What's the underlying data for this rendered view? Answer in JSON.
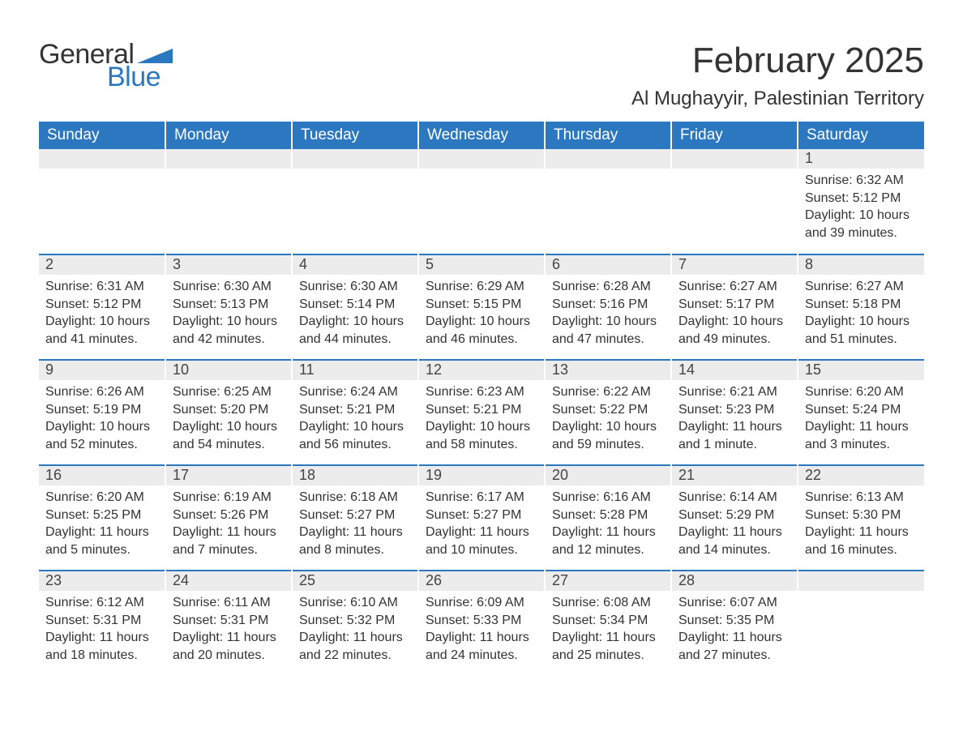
{
  "logo": {
    "general": "General",
    "blue": "Blue",
    "flag_color": "#2b77c0"
  },
  "title": "February 2025",
  "location": "Al Mughayyir, Palestinian Territory",
  "weekdays": [
    "Sunday",
    "Monday",
    "Tuesday",
    "Wednesday",
    "Thursday",
    "Friday",
    "Saturday"
  ],
  "colors": {
    "header_bg": "#2b77c0",
    "header_text": "#ffffff",
    "daynum_bg": "#ececec",
    "border_top": "#2b77c0",
    "text": "#333333",
    "background": "#ffffff"
  },
  "weeks": [
    [
      null,
      null,
      null,
      null,
      null,
      null,
      {
        "n": "1",
        "sunrise": "Sunrise: 6:32 AM",
        "sunset": "Sunset: 5:12 PM",
        "daylight": "Daylight: 10 hours and 39 minutes."
      }
    ],
    [
      {
        "n": "2",
        "sunrise": "Sunrise: 6:31 AM",
        "sunset": "Sunset: 5:12 PM",
        "daylight": "Daylight: 10 hours and 41 minutes."
      },
      {
        "n": "3",
        "sunrise": "Sunrise: 6:30 AM",
        "sunset": "Sunset: 5:13 PM",
        "daylight": "Daylight: 10 hours and 42 minutes."
      },
      {
        "n": "4",
        "sunrise": "Sunrise: 6:30 AM",
        "sunset": "Sunset: 5:14 PM",
        "daylight": "Daylight: 10 hours and 44 minutes."
      },
      {
        "n": "5",
        "sunrise": "Sunrise: 6:29 AM",
        "sunset": "Sunset: 5:15 PM",
        "daylight": "Daylight: 10 hours and 46 minutes."
      },
      {
        "n": "6",
        "sunrise": "Sunrise: 6:28 AM",
        "sunset": "Sunset: 5:16 PM",
        "daylight": "Daylight: 10 hours and 47 minutes."
      },
      {
        "n": "7",
        "sunrise": "Sunrise: 6:27 AM",
        "sunset": "Sunset: 5:17 PM",
        "daylight": "Daylight: 10 hours and 49 minutes."
      },
      {
        "n": "8",
        "sunrise": "Sunrise: 6:27 AM",
        "sunset": "Sunset: 5:18 PM",
        "daylight": "Daylight: 10 hours and 51 minutes."
      }
    ],
    [
      {
        "n": "9",
        "sunrise": "Sunrise: 6:26 AM",
        "sunset": "Sunset: 5:19 PM",
        "daylight": "Daylight: 10 hours and 52 minutes."
      },
      {
        "n": "10",
        "sunrise": "Sunrise: 6:25 AM",
        "sunset": "Sunset: 5:20 PM",
        "daylight": "Daylight: 10 hours and 54 minutes."
      },
      {
        "n": "11",
        "sunrise": "Sunrise: 6:24 AM",
        "sunset": "Sunset: 5:21 PM",
        "daylight": "Daylight: 10 hours and 56 minutes."
      },
      {
        "n": "12",
        "sunrise": "Sunrise: 6:23 AM",
        "sunset": "Sunset: 5:21 PM",
        "daylight": "Daylight: 10 hours and 58 minutes."
      },
      {
        "n": "13",
        "sunrise": "Sunrise: 6:22 AM",
        "sunset": "Sunset: 5:22 PM",
        "daylight": "Daylight: 10 hours and 59 minutes."
      },
      {
        "n": "14",
        "sunrise": "Sunrise: 6:21 AM",
        "sunset": "Sunset: 5:23 PM",
        "daylight": "Daylight: 11 hours and 1 minute."
      },
      {
        "n": "15",
        "sunrise": "Sunrise: 6:20 AM",
        "sunset": "Sunset: 5:24 PM",
        "daylight": "Daylight: 11 hours and 3 minutes."
      }
    ],
    [
      {
        "n": "16",
        "sunrise": "Sunrise: 6:20 AM",
        "sunset": "Sunset: 5:25 PM",
        "daylight": "Daylight: 11 hours and 5 minutes."
      },
      {
        "n": "17",
        "sunrise": "Sunrise: 6:19 AM",
        "sunset": "Sunset: 5:26 PM",
        "daylight": "Daylight: 11 hours and 7 minutes."
      },
      {
        "n": "18",
        "sunrise": "Sunrise: 6:18 AM",
        "sunset": "Sunset: 5:27 PM",
        "daylight": "Daylight: 11 hours and 8 minutes."
      },
      {
        "n": "19",
        "sunrise": "Sunrise: 6:17 AM",
        "sunset": "Sunset: 5:27 PM",
        "daylight": "Daylight: 11 hours and 10 minutes."
      },
      {
        "n": "20",
        "sunrise": "Sunrise: 6:16 AM",
        "sunset": "Sunset: 5:28 PM",
        "daylight": "Daylight: 11 hours and 12 minutes."
      },
      {
        "n": "21",
        "sunrise": "Sunrise: 6:14 AM",
        "sunset": "Sunset: 5:29 PM",
        "daylight": "Daylight: 11 hours and 14 minutes."
      },
      {
        "n": "22",
        "sunrise": "Sunrise: 6:13 AM",
        "sunset": "Sunset: 5:30 PM",
        "daylight": "Daylight: 11 hours and 16 minutes."
      }
    ],
    [
      {
        "n": "23",
        "sunrise": "Sunrise: 6:12 AM",
        "sunset": "Sunset: 5:31 PM",
        "daylight": "Daylight: 11 hours and 18 minutes."
      },
      {
        "n": "24",
        "sunrise": "Sunrise: 6:11 AM",
        "sunset": "Sunset: 5:31 PM",
        "daylight": "Daylight: 11 hours and 20 minutes."
      },
      {
        "n": "25",
        "sunrise": "Sunrise: 6:10 AM",
        "sunset": "Sunset: 5:32 PM",
        "daylight": "Daylight: 11 hours and 22 minutes."
      },
      {
        "n": "26",
        "sunrise": "Sunrise: 6:09 AM",
        "sunset": "Sunset: 5:33 PM",
        "daylight": "Daylight: 11 hours and 24 minutes."
      },
      {
        "n": "27",
        "sunrise": "Sunrise: 6:08 AM",
        "sunset": "Sunset: 5:34 PM",
        "daylight": "Daylight: 11 hours and 25 minutes."
      },
      {
        "n": "28",
        "sunrise": "Sunrise: 6:07 AM",
        "sunset": "Sunset: 5:35 PM",
        "daylight": "Daylight: 11 hours and 27 minutes."
      },
      null
    ]
  ]
}
